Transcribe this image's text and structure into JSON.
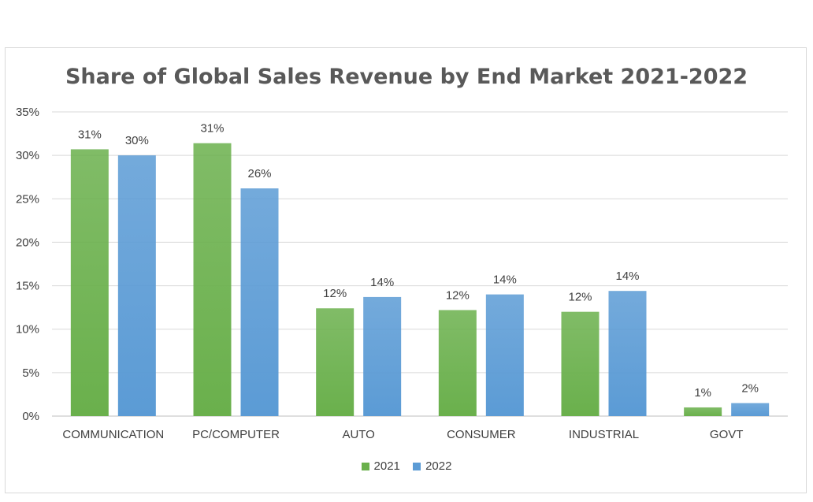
{
  "chart_data": {
    "type": "bar",
    "title": "Share of Global Sales Revenue by End Market 2021-2022",
    "categories": [
      "COMMUNICATION",
      "PC/COMPUTER",
      "AUTO",
      "CONSUMER",
      "INDUSTRIAL",
      "GOVT"
    ],
    "series": [
      {
        "name": "2021",
        "values": [
          30.7,
          31.4,
          12.4,
          12.2,
          12.0,
          1.0
        ],
        "labels": [
          "31%",
          "31%",
          "12%",
          "12%",
          "12%",
          "1%"
        ],
        "color": "#6ab04c"
      },
      {
        "name": "2022",
        "values": [
          30.0,
          26.2,
          13.7,
          14.0,
          14.4,
          1.5
        ],
        "labels": [
          "30%",
          "26%",
          "14%",
          "14%",
          "14%",
          "2%"
        ],
        "color": "#5b9bd5"
      }
    ],
    "ylim": [
      0,
      35
    ],
    "yticks": [
      "0%",
      "5%",
      "10%",
      "15%",
      "20%",
      "25%",
      "30%",
      "35%"
    ],
    "xlabel": "",
    "ylabel": "",
    "grid": true,
    "legend": "bottom"
  }
}
